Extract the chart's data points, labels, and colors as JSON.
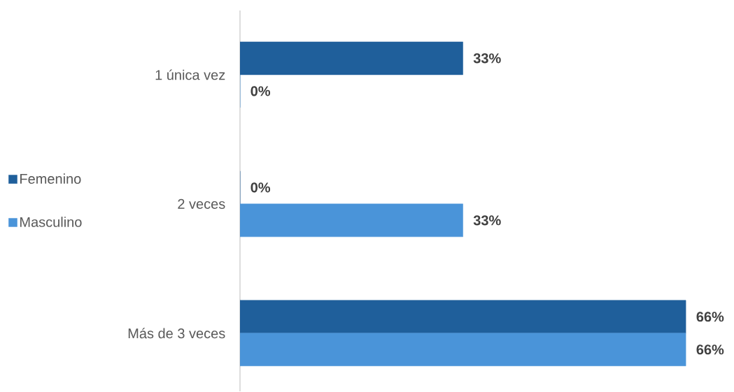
{
  "chart_data": {
    "type": "bar",
    "orientation": "horizontal",
    "categories": [
      "1 única vez",
      "2 veces",
      "Más de 3 veces"
    ],
    "series": [
      {
        "name": "Femenino",
        "color": "#1f5f9b",
        "values": [
          33,
          0,
          66
        ],
        "value_labels": [
          "33%",
          "0%",
          "66%"
        ]
      },
      {
        "name": "Masculino",
        "color": "#4a94d9",
        "values": [
          0,
          33,
          66
        ],
        "value_labels": [
          "0%",
          "33%",
          "66%"
        ]
      }
    ],
    "legend": "left"
  }
}
